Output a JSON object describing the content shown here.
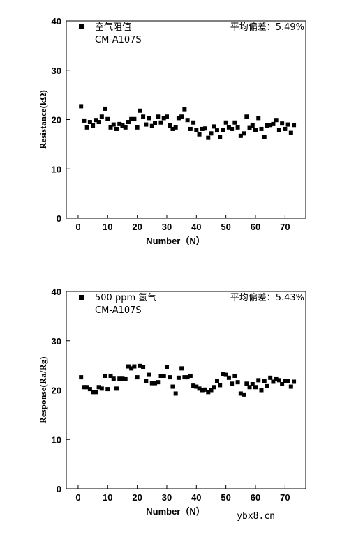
{
  "chart_data": [
    {
      "type": "scatter",
      "xlabel": "Number（N）",
      "ylabel": "Resistance(kΩ)",
      "xlim": [
        -4,
        77
      ],
      "ylim": [
        0,
        40
      ],
      "xticks": [
        0,
        10,
        20,
        30,
        40,
        50,
        60,
        70
      ],
      "yticks": [
        0,
        10,
        20,
        30,
        40
      ],
      "legend": {
        "position": "top-left",
        "label": "空气阻值",
        "sublabel": "CM-A107S"
      },
      "annotation": "平均偏差：5.49%",
      "series": [
        {
          "name": "空气阻值",
          "x": [
            1,
            2,
            3,
            4,
            5,
            6,
            7,
            8,
            9,
            10,
            11,
            12,
            13,
            14,
            15,
            16,
            17,
            18,
            19,
            20,
            21,
            22,
            23,
            24,
            25,
            26,
            27,
            28,
            29,
            30,
            31,
            32,
            33,
            34,
            35,
            36,
            37,
            38,
            39,
            40,
            41,
            42,
            43,
            44,
            45,
            46,
            47,
            48,
            49,
            50,
            51,
            52,
            53,
            54,
            55,
            56,
            57,
            58,
            59,
            60,
            61,
            62,
            63,
            64,
            65,
            66,
            67,
            68,
            69,
            70,
            71,
            72,
            73
          ],
          "y": [
            22.7,
            19.8,
            18.4,
            19.5,
            18.8,
            19.9,
            19.5,
            20.6,
            22.2,
            20.1,
            18.4,
            19.0,
            18.1,
            19.1,
            18.8,
            18.4,
            19.5,
            20.1,
            20.1,
            18.4,
            21.8,
            20.6,
            19.0,
            20.3,
            18.7,
            19.3,
            20.6,
            19.4,
            20.3,
            20.6,
            18.8,
            18.1,
            18.4,
            20.3,
            20.6,
            22.1,
            19.9,
            18.1,
            19.4,
            17.9,
            17.0,
            18.1,
            18.2,
            16.3,
            17.2,
            18.6,
            17.8,
            16.5,
            17.9,
            19.4,
            18.4,
            18.1,
            19.4,
            18.4,
            16.7,
            17.2,
            20.6,
            18.3,
            18.8,
            17.9,
            20.3,
            18.1,
            16.5,
            18.8,
            18.9,
            19.1,
            19.9,
            17.9,
            19.2,
            18.1,
            19.0,
            17.3,
            18.9
          ]
        }
      ]
    },
    {
      "type": "scatter",
      "xlabel": "Number（N）",
      "ylabel": "Response(Ra/Rg)",
      "xlim": [
        -4,
        77
      ],
      "ylim": [
        0,
        40
      ],
      "xticks": [
        0,
        10,
        20,
        30,
        40,
        50,
        60,
        70
      ],
      "yticks": [
        0,
        10,
        20,
        30,
        40
      ],
      "legend": {
        "position": "top-left",
        "label": "500 ppm 氢气",
        "sublabel": "CM-A107S"
      },
      "annotation": "平均偏差：5.43%",
      "series": [
        {
          "name": "500 ppm 氢气",
          "x": [
            1,
            2,
            3,
            4,
            5,
            6,
            7,
            8,
            9,
            10,
            11,
            12,
            13,
            14,
            15,
            16,
            17,
            18,
            19,
            20,
            21,
            22,
            23,
            24,
            25,
            26,
            27,
            28,
            29,
            30,
            31,
            32,
            33,
            34,
            35,
            36,
            37,
            38,
            39,
            40,
            41,
            42,
            43,
            44,
            45,
            46,
            47,
            48,
            49,
            50,
            51,
            52,
            53,
            54,
            55,
            56,
            57,
            58,
            59,
            60,
            61,
            62,
            63,
            64,
            65,
            66,
            67,
            68,
            69,
            70,
            71,
            72,
            73
          ],
          "y": [
            22.6,
            20.6,
            20.6,
            20.2,
            19.6,
            19.6,
            20.6,
            20.3,
            22.9,
            20.2,
            22.9,
            22.3,
            20.3,
            22.3,
            22.3,
            22.2,
            24.8,
            24.4,
            24.8,
            22.6,
            24.9,
            24.7,
            21.9,
            23.1,
            21.4,
            21.4,
            21.6,
            22.9,
            22.9,
            24.6,
            22.6,
            20.7,
            19.3,
            22.5,
            24.4,
            22.6,
            22.6,
            22.9,
            20.9,
            20.7,
            20.3,
            20.0,
            20.1,
            19.6,
            20.0,
            20.6,
            21.9,
            21.0,
            23.2,
            23.1,
            22.5,
            21.3,
            22.9,
            21.6,
            19.3,
            19.1,
            21.3,
            20.6,
            21.2,
            20.6,
            22.0,
            20.0,
            21.9,
            20.8,
            22.5,
            21.7,
            22.2,
            22.0,
            21.2,
            21.8,
            21.9,
            20.7,
            21.7
          ]
        }
      ]
    }
  ],
  "watermark": "ybx8.cn"
}
